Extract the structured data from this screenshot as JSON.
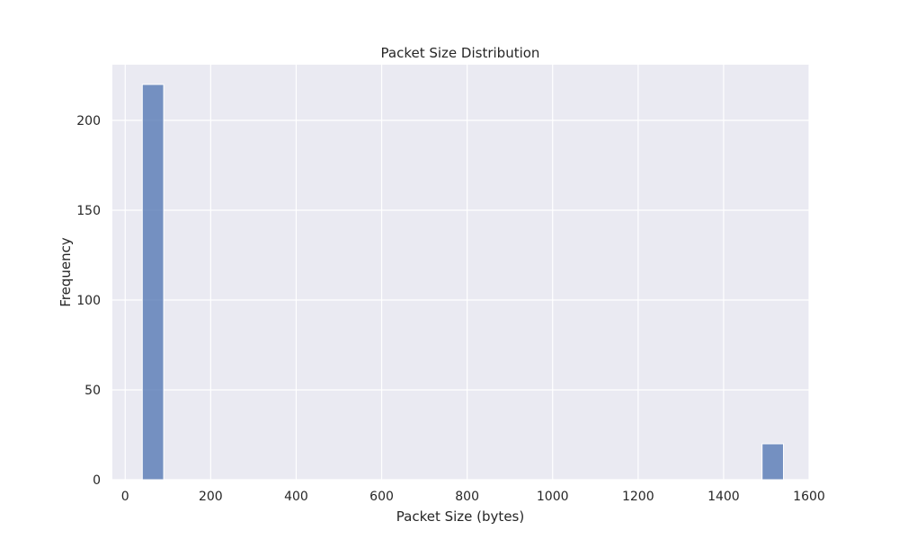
{
  "chart_data": {
    "type": "bar",
    "title": "Packet Size Distribution",
    "xlabel": "Packet Size (bytes)",
    "ylabel": "Frequency",
    "xlim": [
      -30,
      1600
    ],
    "ylim": [
      0,
      231
    ],
    "xticks": [
      0,
      200,
      400,
      600,
      800,
      1000,
      1200,
      1400,
      1600
    ],
    "yticks": [
      0,
      50,
      100,
      150,
      200
    ],
    "bins": [
      {
        "start": 40,
        "end": 90,
        "count": 220
      },
      {
        "start": 1490,
        "end": 1540,
        "count": 20
      }
    ],
    "grid": true,
    "bar_color": "#4c72b0",
    "background_color": "#eaeaf2"
  }
}
